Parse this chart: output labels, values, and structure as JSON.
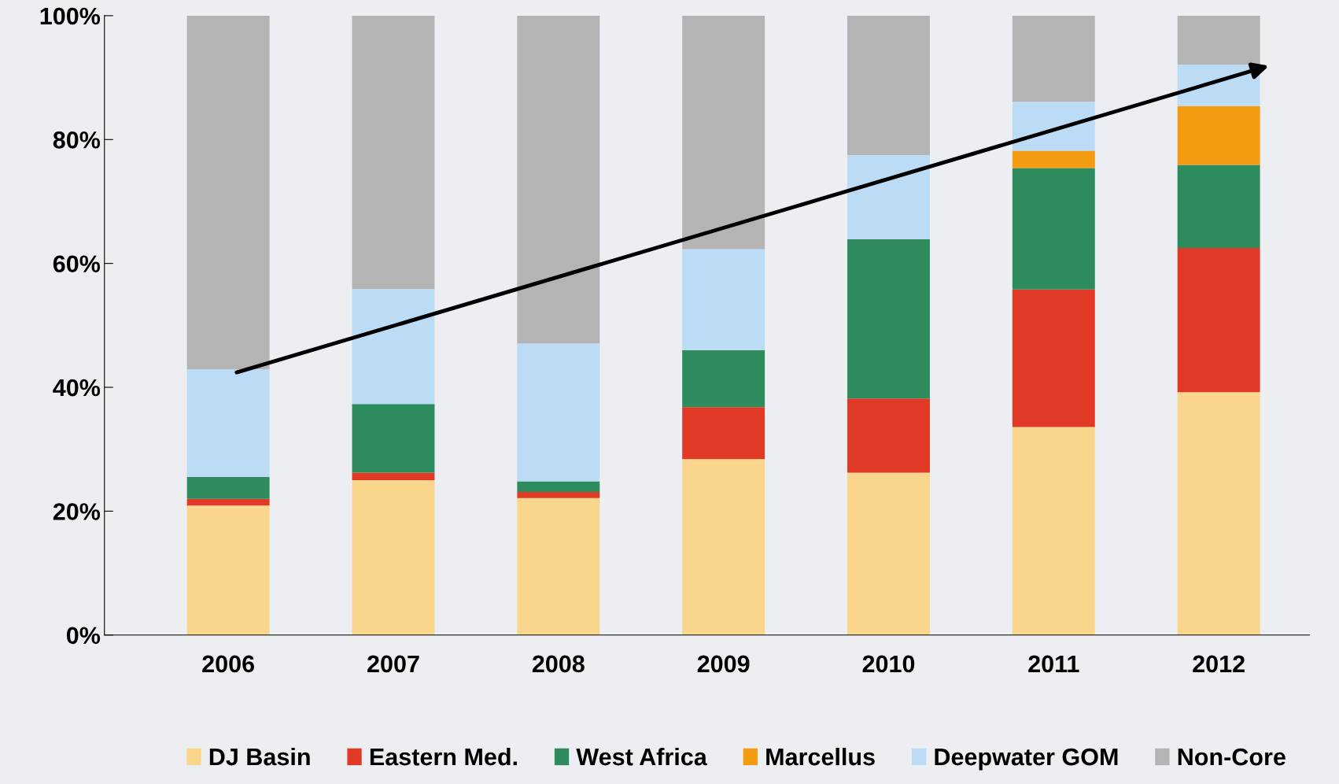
{
  "chart_data": {
    "type": "bar",
    "stacked": true,
    "categories": [
      "2006",
      "2007",
      "2008",
      "2009",
      "2010",
      "2011",
      "2012"
    ],
    "series": [
      {
        "name": "DJ Basin",
        "color": "#f9d68c",
        "values": [
          20.9,
          25.0,
          22.1,
          28.4,
          26.2,
          33.6,
          39.2
        ]
      },
      {
        "name": "Eastern Med.",
        "color": "#e03a26",
        "values": [
          1.1,
          1.2,
          1.0,
          8.4,
          12.0,
          22.2,
          23.3
        ]
      },
      {
        "name": "West Africa",
        "color": "#2e8b5e",
        "values": [
          3.5,
          11.1,
          1.7,
          9.2,
          25.7,
          19.6,
          13.4
        ]
      },
      {
        "name": "Marcellus",
        "color": "#f39c12",
        "values": [
          0,
          0,
          0,
          0,
          0,
          2.8,
          9.5
        ]
      },
      {
        "name": "Deepwater GOM",
        "color": "#bcdcf5",
        "values": [
          17.4,
          18.6,
          22.3,
          16.3,
          13.6,
          7.9,
          6.7
        ]
      },
      {
        "name": "Non-Core",
        "color": "#b4b4b4",
        "values": [
          57.1,
          44.1,
          52.9,
          37.7,
          22.5,
          13.9,
          7.9
        ]
      }
    ],
    "ylim": [
      0,
      100
    ],
    "yticks": [
      {
        "value": 0,
        "label": "0%"
      },
      {
        "value": 20,
        "label": "20%"
      },
      {
        "value": 40,
        "label": "40%"
      },
      {
        "value": 60,
        "label": "60%"
      },
      {
        "value": 80,
        "label": "80%"
      },
      {
        "value": 100,
        "label": "100%"
      }
    ],
    "grid": false,
    "legend": "bottom"
  }
}
